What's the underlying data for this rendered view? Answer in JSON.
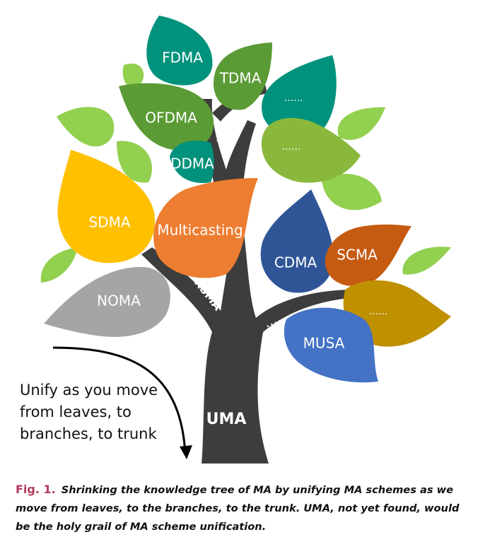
{
  "leaves": {
    "fdma": "FDMA",
    "tdma": "TDMA",
    "ofdma": "OFDMA",
    "ddma": "DDMA",
    "more_top_right": "......",
    "more_mid_right": "......",
    "sdma": "SDMA",
    "multicasting": "Multicasting",
    "noma": "NOMA",
    "cdma": "CDMA",
    "scma": "SCMA",
    "more_lower_right": "......",
    "musa": "MUSA"
  },
  "branch_label": "RSMA",
  "trunk_label": "UMA",
  "note": [
    "Unify as you move",
    "from leaves, to",
    "branches, to trunk"
  ],
  "caption": {
    "label": "Fig. 1.",
    "text": "Shrinking the knowledge tree of MA by unifying MA schemes as we move from leaves, to the branches, to the trunk. UMA, not yet found, would be the holy grail of MA scheme unification."
  },
  "colors": {
    "trunk": "#3d3d3d",
    "light_green": "#92d050",
    "teal": "#00927c",
    "green": "#5b9b35",
    "olive_green": "#8ab83c",
    "yellow": "#ffc000",
    "orange": "#ed7d31",
    "gray": "#a5a5a5",
    "navy": "#2f5597",
    "rust": "#c55a11",
    "gold": "#bf9000",
    "blue": "#4472c4",
    "caption_label": "#b33a5a"
  }
}
